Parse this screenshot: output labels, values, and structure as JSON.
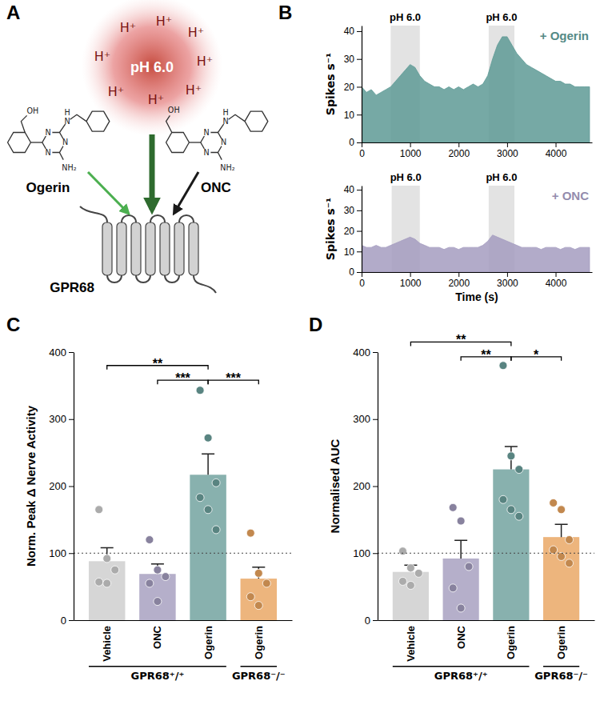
{
  "chart_data": [
    {
      "type": "diagram",
      "panel": "A",
      "stimulus": "pH 6.0",
      "ions": [
        "H⁺",
        "H⁺",
        "H⁺",
        "H⁺",
        "H⁺",
        "H⁺",
        "H⁺",
        "H⁺"
      ],
      "receptor": "GPR68",
      "ligands": [
        {
          "name": "Ogerin",
          "color": "#4caf50",
          "atoms": [
            "OH",
            "N",
            "N",
            "N",
            "N",
            "H",
            "NH₂"
          ]
        },
        {
          "name": "ONC",
          "color": "#1a1a1a",
          "atoms": [
            "OH",
            "N",
            "N",
            "N",
            "N",
            "H",
            "NH₂"
          ]
        }
      ]
    },
    {
      "type": "area",
      "panel": "B",
      "x": [
        0,
        100,
        200,
        300,
        400,
        500,
        600,
        700,
        800,
        900,
        1000,
        1100,
        1200,
        1300,
        1400,
        1500,
        1600,
        1700,
        1800,
        1900,
        2000,
        2100,
        2200,
        2300,
        2400,
        2500,
        2600,
        2700,
        2800,
        2900,
        3000,
        3100,
        3200,
        3300,
        3400,
        3500,
        3600,
        3700,
        3800,
        3900,
        4000,
        4100,
        4200,
        4300,
        4400,
        4500,
        4600,
        4700
      ],
      "series": [
        {
          "name": "+ Ogerin",
          "color": "#5e9a95",
          "values": [
            20,
            18,
            19,
            17,
            18,
            19,
            20,
            22,
            24,
            26,
            28,
            27,
            24,
            22,
            21,
            20,
            20,
            19,
            20,
            19,
            20,
            19,
            20,
            21,
            20,
            21,
            24,
            30,
            35,
            38,
            38,
            35,
            32,
            30,
            28,
            27,
            26,
            25,
            24,
            23,
            22,
            22,
            21,
            21,
            20,
            20,
            20,
            20
          ]
        }
      ],
      "xlim": [
        0,
        4750
      ],
      "xticks": [
        0,
        1000,
        2000,
        3000,
        4000
      ],
      "ylim": [
        0,
        42
      ],
      "yticks": [
        0,
        10,
        20,
        30,
        40
      ],
      "y_label": "Spikes s⁻¹",
      "annotations": [
        {
          "text": "pH 6.0",
          "x": [
            600,
            1200
          ]
        },
        {
          "text": "pH 6.0",
          "x": [
            2620,
            3150
          ]
        }
      ]
    },
    {
      "type": "area",
      "x": [
        0,
        100,
        200,
        300,
        400,
        500,
        600,
        700,
        800,
        900,
        1000,
        1100,
        1200,
        1300,
        1400,
        1500,
        1600,
        1700,
        1800,
        1900,
        2000,
        2100,
        2200,
        2300,
        2400,
        2500,
        2600,
        2700,
        2800,
        2900,
        3000,
        3100,
        3200,
        3300,
        3400,
        3500,
        3600,
        3700,
        3800,
        3900,
        4000,
        4100,
        4200,
        4300,
        4400,
        4500,
        4600,
        4700
      ],
      "series": [
        {
          "name": "+ ONC",
          "color": "#a49cc0",
          "values": [
            13,
            12,
            12,
            13,
            12,
            12,
            13,
            14,
            15,
            16,
            17,
            16,
            14,
            13,
            12,
            12,
            12,
            11,
            12,
            12,
            11,
            12,
            12,
            12,
            12,
            13,
            15,
            18,
            17,
            16,
            15,
            14,
            13,
            12,
            12,
            12,
            12,
            11,
            12,
            12,
            12,
            11,
            12,
            12,
            11,
            12,
            12,
            12
          ]
        }
      ],
      "xlim": [
        0,
        4750
      ],
      "xticks": [
        0,
        1000,
        2000,
        3000,
        4000
      ],
      "ylim": [
        0,
        42
      ],
      "yticks": [
        0,
        10,
        20,
        30,
        40
      ],
      "y_label": "Spikes s⁻¹",
      "x_label": "Time (s)",
      "annotations": [
        {
          "text": "pH 6.0",
          "x": [
            620,
            1200
          ]
        },
        {
          "text": "pH 6.0",
          "x": [
            2620,
            3150
          ]
        }
      ]
    },
    {
      "type": "bar",
      "panel": "C",
      "categories": [
        "Vehicle",
        "ONC",
        "Ogerin",
        "Ogerin"
      ],
      "values": [
        88,
        69,
        217,
        62
      ],
      "errors": [
        20,
        15,
        31,
        17
      ],
      "points": [
        [
          165,
          92,
          75,
          57,
          55
        ],
        [
          120,
          75,
          65,
          55,
          28
        ],
        [
          343,
          272,
          205,
          183,
          165,
          135
        ],
        [
          130,
          70,
          55,
          35,
          22
        ]
      ],
      "colors": [
        "#cccccc",
        "#a39bbd",
        "#6a9e9a",
        "#e8a35d"
      ],
      "ylim": [
        0,
        400
      ],
      "yticks": [
        0,
        100,
        200,
        300,
        400
      ],
      "y_label": "Norm. Peak Δ Nerve Activity",
      "hline": 100,
      "groups": [
        {
          "label": "GPR68⁺/⁺",
          "members": [
            0,
            1,
            2
          ]
        },
        {
          "label": "GPR68⁻/⁻",
          "members": [
            3
          ]
        }
      ],
      "comparisons": [
        {
          "pair": [
            0,
            2
          ],
          "label": "**",
          "y": 380
        },
        {
          "pair": [
            1,
            2
          ],
          "label": "***",
          "y": 358
        },
        {
          "pair": [
            2,
            3
          ],
          "label": "***",
          "y": 358
        }
      ]
    },
    {
      "type": "bar",
      "panel": "D",
      "categories": [
        "Vehicle",
        "ONC",
        "Ogerin",
        "Ogerin"
      ],
      "values": [
        72,
        92,
        225,
        124
      ],
      "errors": [
        10,
        27,
        34,
        19
      ],
      "points": [
        [
          103,
          78,
          70,
          58,
          52
        ],
        [
          168,
          148,
          80,
          48,
          18
        ],
        [
          380,
          245,
          225,
          180,
          165,
          155
        ],
        [
          175,
          165,
          120,
          105,
          95,
          85
        ]
      ],
      "colors": [
        "#cccccc",
        "#a39bbd",
        "#6a9e9a",
        "#e8a35d"
      ],
      "ylim": [
        0,
        400
      ],
      "yticks": [
        0,
        100,
        200,
        300,
        400
      ],
      "y_label": "Normalised AUC",
      "hline": 100,
      "groups": [
        {
          "label": "GPR68⁺/⁺",
          "members": [
            0,
            1,
            2
          ]
        },
        {
          "label": "GPR68⁻/⁻",
          "members": [
            3
          ]
        }
      ],
      "comparisons": [
        {
          "pair": [
            0,
            2
          ],
          "label": "**",
          "y": 415
        },
        {
          "pair": [
            1,
            2
          ],
          "label": "**",
          "y": 393
        },
        {
          "pair": [
            2,
            3
          ],
          "label": "*",
          "y": 393
        }
      ]
    }
  ]
}
